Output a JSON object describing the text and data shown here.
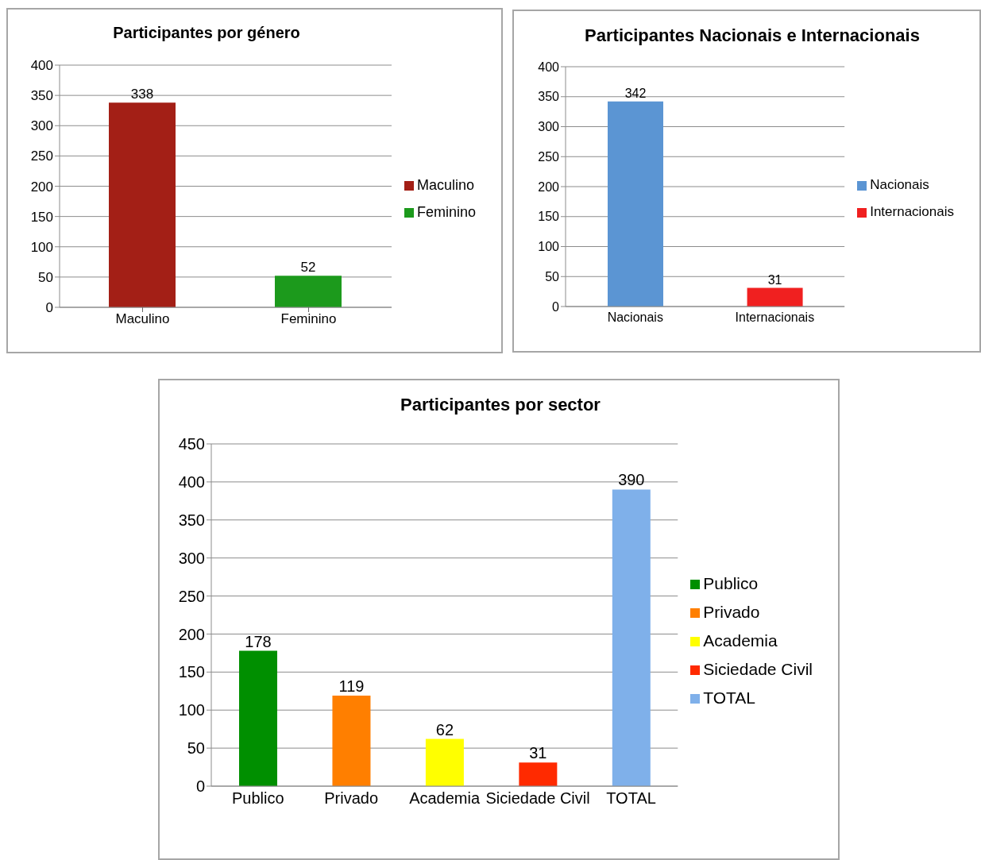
{
  "chart_data": [
    {
      "type": "bar",
      "title": "Participantes por género",
      "categories": [
        "Maculino",
        "Feminino"
      ],
      "series": [
        {
          "name": "Maculino",
          "color": "#a31f16",
          "values": [
            338,
            null
          ]
        },
        {
          "name": "Feminino",
          "color": "#1c9a1c",
          "values": [
            null,
            52
          ]
        }
      ],
      "ylim": [
        0,
        400
      ],
      "yticks": [
        0,
        50,
        100,
        150,
        200,
        250,
        300,
        350,
        400
      ],
      "grid": "y",
      "legend": "right",
      "data_labels": true
    },
    {
      "type": "bar",
      "title": "Participantes Nacionais e Internacionais",
      "categories": [
        "Nacionais",
        "Internacionais"
      ],
      "series": [
        {
          "name": "Nacionais",
          "color": "#5b95d3",
          "values": [
            342,
            null
          ]
        },
        {
          "name": "Internacionais",
          "color": "#f02020",
          "values": [
            null,
            31
          ]
        }
      ],
      "ylim": [
        0,
        400
      ],
      "yticks": [
        0,
        50,
        100,
        150,
        200,
        250,
        300,
        350,
        400
      ],
      "grid": "y",
      "legend": "right",
      "data_labels": true
    },
    {
      "type": "bar",
      "title": "Participantes por sector",
      "categories": [
        "Publico",
        "Privado",
        "Academia",
        "Siciedade Civil",
        "TOTAL"
      ],
      "series": [
        {
          "name": "Publico",
          "color": "#008f00",
          "values": [
            178,
            null,
            null,
            null,
            null
          ]
        },
        {
          "name": "Privado",
          "color": "#ff7f00",
          "values": [
            null,
            119,
            null,
            null,
            null
          ]
        },
        {
          "name": "Academia",
          "color": "#ffff00",
          "values": [
            null,
            null,
            62,
            null,
            null
          ]
        },
        {
          "name": "Siciedade Civil",
          "color": "#ff2a00",
          "values": [
            null,
            null,
            null,
            31,
            null
          ]
        },
        {
          "name": "TOTAL",
          "color": "#7fb0ea",
          "values": [
            null,
            null,
            null,
            null,
            390
          ]
        }
      ],
      "ylim": [
        0,
        450
      ],
      "yticks": [
        0,
        50,
        100,
        150,
        200,
        250,
        300,
        350,
        400,
        450
      ],
      "grid": "y",
      "legend": "right",
      "data_labels": true
    }
  ]
}
